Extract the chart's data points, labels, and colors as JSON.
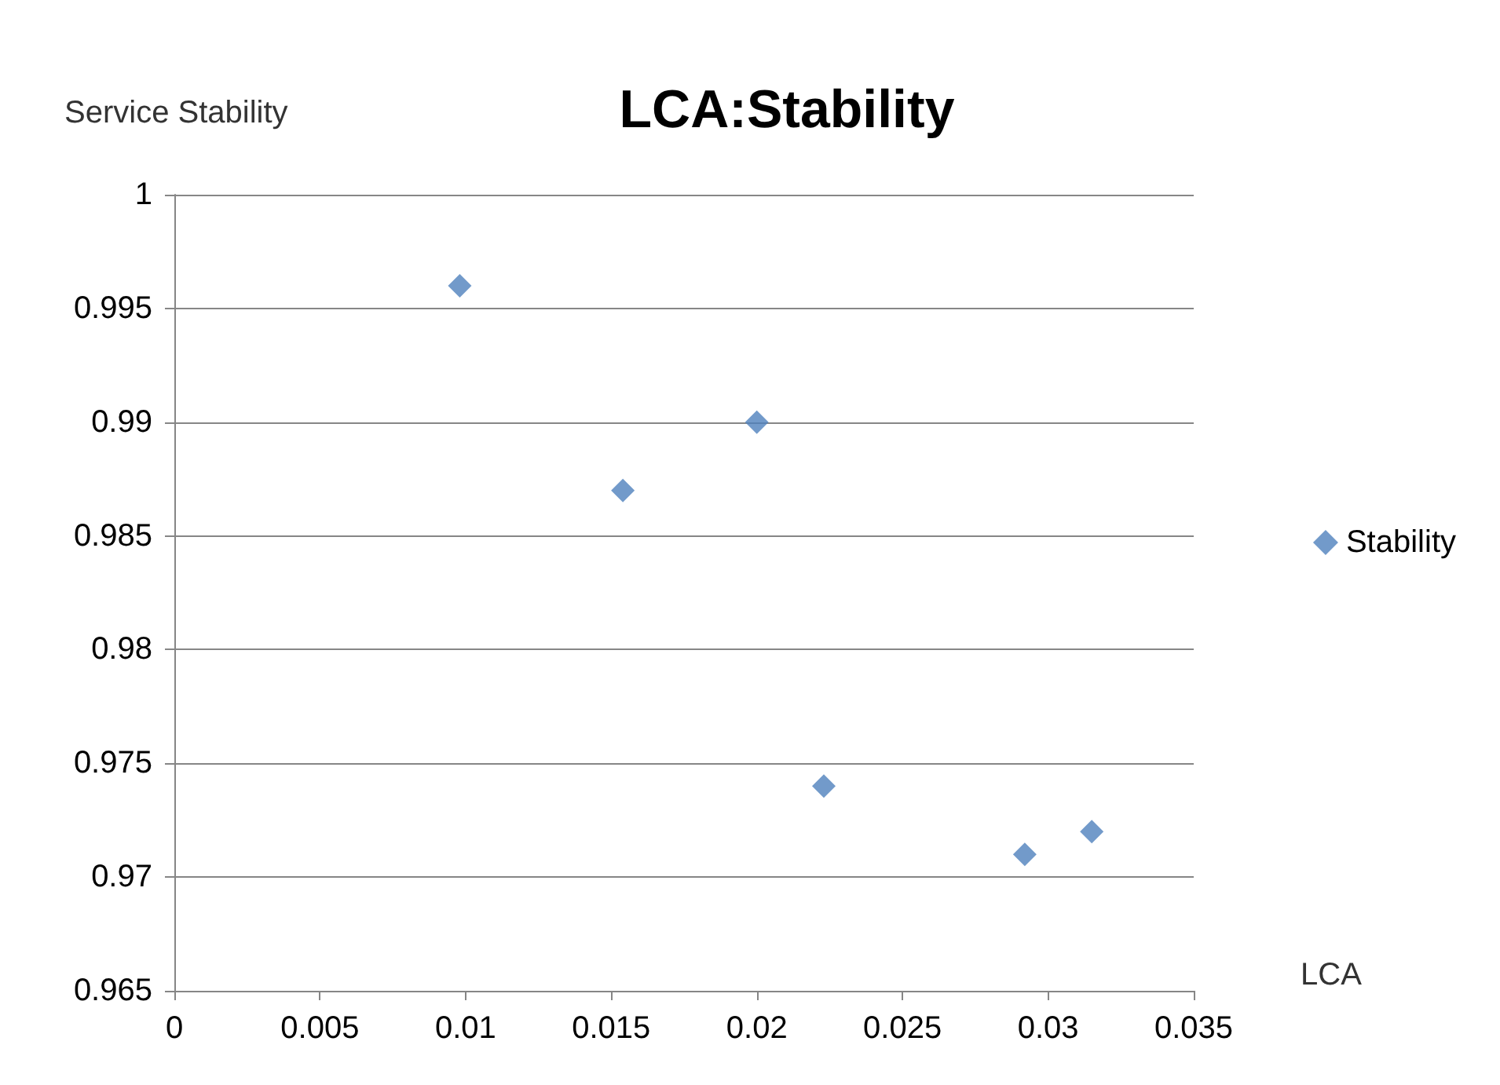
{
  "chart_data": {
    "type": "scatter",
    "title": "LCA:Stability",
    "xlabel": "LCA",
    "ylabel": "Service Stability",
    "x": [
      0.0098,
      0.0154,
      0.02,
      0.0223,
      0.0292,
      0.0315
    ],
    "series": [
      {
        "name": "Stability",
        "color": "#4f81bd",
        "values": [
          0.996,
          0.987,
          0.99,
          0.974,
          0.971,
          0.972
        ]
      }
    ],
    "xlim": [
      0,
      0.035
    ],
    "xticks": [
      0,
      0.005,
      0.01,
      0.015,
      0.02,
      0.025,
      0.03,
      0.035
    ],
    "ylim": [
      0.965,
      1
    ],
    "yticks": [
      0.965,
      0.97,
      0.975,
      0.98,
      0.985,
      0.99,
      0.995,
      1
    ],
    "grid": "y",
    "legend": "right",
    "marker": "diamond"
  }
}
